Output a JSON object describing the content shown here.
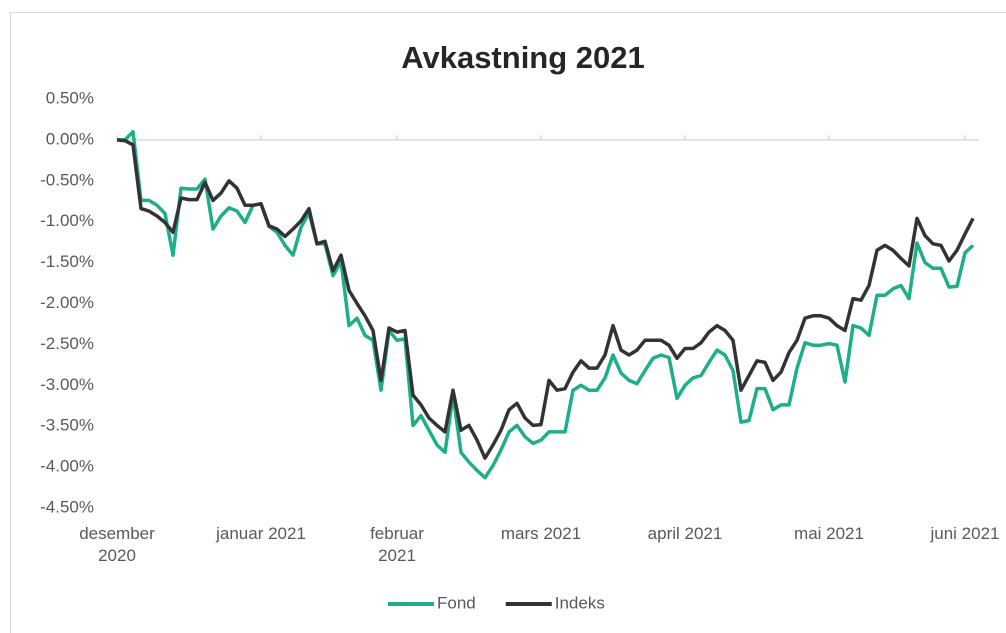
{
  "chart_data": {
    "type": "line",
    "title": "Avkastning 2021",
    "categories": [
      "desember\n2020",
      null,
      null,
      null,
      null,
      null,
      null,
      null,
      null,
      null,
      null,
      null,
      null,
      null,
      null,
      null,
      null,
      null,
      "januar 2021",
      null,
      null,
      null,
      null,
      null,
      null,
      null,
      null,
      null,
      null,
      null,
      null,
      null,
      null,
      null,
      null,
      "februar\n2021",
      null,
      null,
      null,
      null,
      null,
      null,
      null,
      null,
      null,
      null,
      null,
      null,
      null,
      null,
      null,
      null,
      null,
      "mars 2021",
      null,
      null,
      null,
      null,
      null,
      null,
      null,
      null,
      null,
      null,
      null,
      null,
      null,
      null,
      null,
      null,
      null,
      "april 2021",
      null,
      null,
      null,
      null,
      null,
      null,
      null,
      null,
      null,
      null,
      null,
      null,
      null,
      null,
      null,
      null,
      null,
      "mai 2021",
      null,
      null,
      null,
      null,
      null,
      null,
      null,
      null,
      null,
      null,
      null,
      null,
      null,
      null,
      null,
      null,
      "juni 2021",
      null
    ],
    "series": [
      {
        "name": "Fond",
        "color": "#1eae8a",
        "values": [
          0,
          0,
          0.1,
          -0.74,
          -0.74,
          -0.8,
          -0.9,
          -1.41,
          -0.59,
          -0.6,
          -0.6,
          -0.48,
          -1.09,
          -0.93,
          -0.83,
          -0.87,
          -1.01,
          -0.8,
          -0.78,
          -1.06,
          -1.13,
          -1.29,
          -1.41,
          -1.07,
          -0.89,
          -1.27,
          -1.27,
          -1.66,
          -1.48,
          -2.27,
          -2.18,
          -2.39,
          -2.45,
          -3.06,
          -2.33,
          -2.45,
          -2.43,
          -3.49,
          -3.37,
          -3.55,
          -3.73,
          -3.82,
          -3.12,
          -3.82,
          -3.94,
          -4.04,
          -4.13,
          -3.98,
          -3.79,
          -3.57,
          -3.49,
          -3.63,
          -3.71,
          -3.67,
          -3.57,
          -3.57,
          -3.57,
          -3.06,
          -3.0,
          -3.06,
          -3.06,
          -2.91,
          -2.63,
          -2.85,
          -2.94,
          -2.98,
          -2.82,
          -2.67,
          -2.63,
          -2.66,
          -3.16,
          -3.0,
          -2.91,
          -2.88,
          -2.72,
          -2.57,
          -2.63,
          -2.82,
          -3.45,
          -3.43,
          -3.04,
          -3.04,
          -3.3,
          -3.24,
          -3.24,
          -2.79,
          -2.48,
          -2.51,
          -2.51,
          -2.49,
          -2.51,
          -2.96,
          -2.27,
          -2.3,
          -2.39,
          -1.9,
          -1.9,
          -1.82,
          -1.78,
          -1.94,
          -1.26,
          -1.5,
          -1.57,
          -1.57,
          -1.8,
          -1.79,
          -1.38,
          -1.29
        ]
      },
      {
        "name": "Indeks",
        "color": "#333333",
        "values": [
          0,
          -0.01,
          -0.06,
          -0.84,
          -0.87,
          -0.93,
          -1.01,
          -1.13,
          -0.71,
          -0.73,
          -0.73,
          -0.52,
          -0.74,
          -0.65,
          -0.5,
          -0.59,
          -0.8,
          -0.8,
          -0.78,
          -1.05,
          -1.09,
          -1.18,
          -1.09,
          -0.99,
          -0.84,
          -1.27,
          -1.24,
          -1.6,
          -1.41,
          -1.84,
          -2.0,
          -2.15,
          -2.33,
          -2.94,
          -2.3,
          -2.35,
          -2.33,
          -3.12,
          -3.24,
          -3.4,
          -3.49,
          -3.57,
          -3.06,
          -3.55,
          -3.49,
          -3.67,
          -3.89,
          -3.73,
          -3.55,
          -3.3,
          -3.22,
          -3.4,
          -3.49,
          -3.48,
          -2.94,
          -3.06,
          -3.04,
          -2.84,
          -2.7,
          -2.79,
          -2.79,
          -2.63,
          -2.27,
          -2.57,
          -2.63,
          -2.57,
          -2.45,
          -2.45,
          -2.45,
          -2.51,
          -2.67,
          -2.55,
          -2.55,
          -2.48,
          -2.35,
          -2.27,
          -2.33,
          -2.45,
          -3.06,
          -2.88,
          -2.7,
          -2.72,
          -2.94,
          -2.84,
          -2.6,
          -2.45,
          -2.18,
          -2.15,
          -2.15,
          -2.18,
          -2.27,
          -2.33,
          -1.94,
          -1.96,
          -1.78,
          -1.35,
          -1.29,
          -1.35,
          -1.45,
          -1.54,
          -0.96,
          -1.17,
          -1.27,
          -1.29,
          -1.48,
          -1.35,
          -1.15,
          -0.96
        ]
      }
    ],
    "ylim": [
      -4.5,
      0.5
    ],
    "yticks": [
      {
        "value": 0.5,
        "label": "0.50%"
      },
      {
        "value": 0,
        "label": "0.00%"
      },
      {
        "value": -0.5,
        "label": "-0.50%"
      },
      {
        "value": -1,
        "label": "-1.00%"
      },
      {
        "value": -1.5,
        "label": "-1.50%"
      },
      {
        "value": -2,
        "label": "-2.00%"
      },
      {
        "value": -2.5,
        "label": "-2.50%"
      },
      {
        "value": -3,
        "label": "-3.00%"
      },
      {
        "value": -3.5,
        "label": "-3.50%"
      },
      {
        "value": -4,
        "label": "-4.00%"
      },
      {
        "value": -4.5,
        "label": "-4.50%"
      }
    ],
    "legend": "bottom"
  }
}
